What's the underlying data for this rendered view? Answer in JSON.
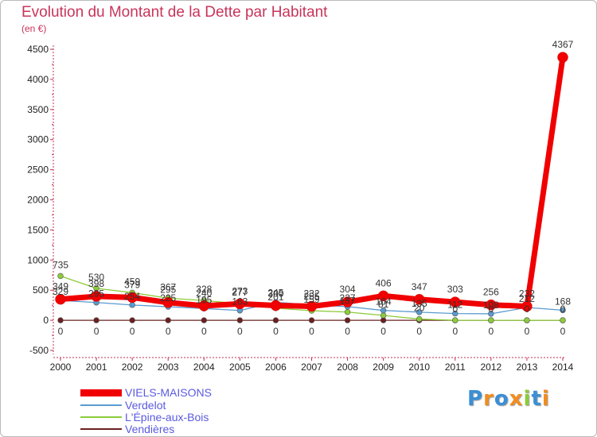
{
  "chart_data": {
    "type": "line",
    "title": "Evolution du Montant de la Dette par Habitant",
    "ylabel": "(en €)",
    "xlabel": "",
    "ylim": [
      -500,
      4500
    ],
    "yticks": [
      -500,
      0,
      500,
      1000,
      1500,
      2000,
      2500,
      3000,
      3500,
      4000,
      4500
    ],
    "grid": false,
    "x": [
      "2000",
      "2001",
      "2002",
      "2003",
      "2004",
      "2005",
      "2006",
      "2007",
      "2008",
      "2009",
      "2010",
      "2011",
      "2012",
      "2013",
      "2014"
    ],
    "series": [
      {
        "name": "VIELS-MAISONS",
        "color": "#f00000",
        "values": [
          349,
          398,
          379,
          295,
          240,
          273,
          245,
          232,
          304,
          406,
          347,
          303,
          256,
          232,
          4367
        ],
        "labels": [
          "349",
          "398",
          "379",
          "295",
          "240",
          "273",
          "245",
          "232",
          "304",
          "406",
          "347",
          "303",
          "256",
          "232",
          "4367"
        ]
      },
      {
        "name": "Verdelot",
        "color": "#5a9bd0",
        "values": [
          329,
          295,
          254,
          225,
          195,
          163,
          300,
          255,
          227,
          164,
          135,
          112,
          108,
          212,
          168
        ],
        "labels": [
          "329",
          "295",
          "254",
          "225",
          "195",
          "163",
          "300",
          "255",
          "227",
          "164",
          "135",
          "112",
          "108",
          "212",
          "168"
        ]
      },
      {
        "name": "L'Épine-aux-Bois",
        "color": "#8ccc3a",
        "values": [
          735,
          530,
          459,
          367,
          328,
          277,
          201,
          159,
          137,
          81,
          20,
          0,
          0,
          0,
          0
        ],
        "labels": [
          "735",
          "530",
          "459",
          "367",
          "328",
          "277",
          "201",
          "159",
          "137",
          "81",
          "20",
          "0",
          "0",
          "0",
          "0"
        ]
      },
      {
        "name": "Vendières",
        "color": "#6a2020",
        "values": [
          0,
          0,
          0,
          0,
          0,
          0,
          0,
          0,
          0,
          0,
          0,
          0,
          0,
          0,
          0
        ],
        "labels": [
          "0",
          "0",
          "0",
          "0",
          "0",
          "0",
          "0",
          "0",
          "0",
          "0",
          "0",
          "0",
          "0",
          "0",
          "0"
        ]
      }
    ],
    "legend_position": "bottom-left"
  },
  "logo": {
    "letters": [
      "P",
      "r",
      "o",
      "x",
      "i",
      "t",
      "i"
    ],
    "colors": [
      "#3a8fd6",
      "#f28c1e",
      "#3a8fd6",
      "#f28c1e",
      "#8ccc3a",
      "#3a8fd6",
      "#f28c1e"
    ]
  }
}
